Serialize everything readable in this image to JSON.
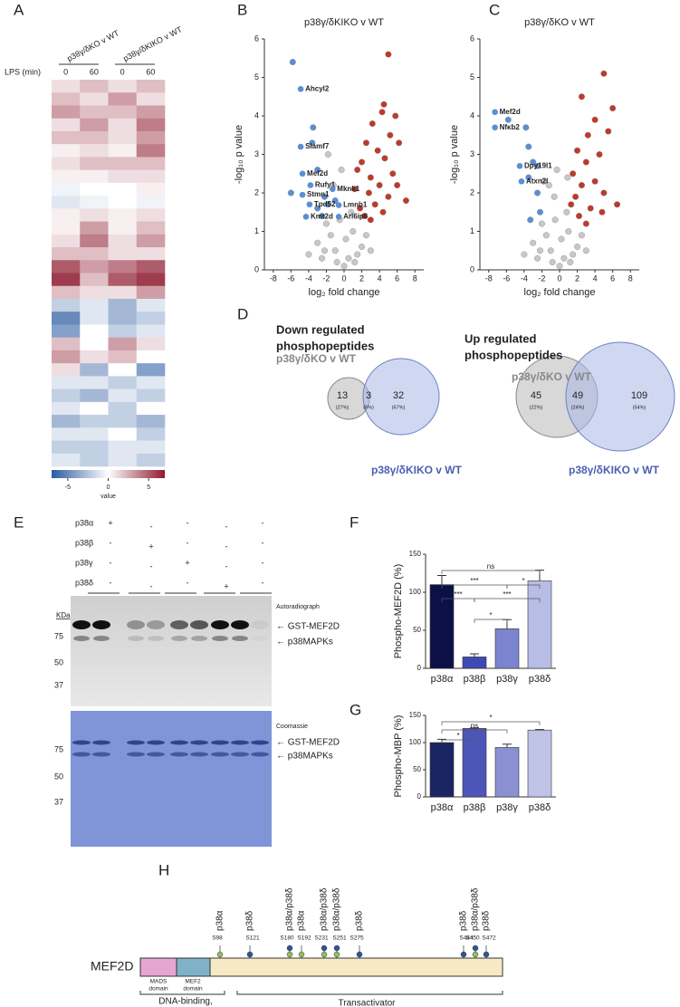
{
  "panel_labels": [
    "A",
    "B",
    "C",
    "D",
    "E",
    "F",
    "G",
    "H"
  ],
  "heatmap": {
    "column_groups": [
      "p38γ/δKO v WT",
      "p38γ/δKIKO v WT"
    ],
    "row_label": "LPS (min)",
    "time_points": [
      "0",
      "60",
      "0",
      "60"
    ],
    "lim": [
      -7,
      7
    ],
    "ticks": [
      -5,
      0,
      5
    ],
    "colorbar_label": "value",
    "rows": [
      [
        1,
        2,
        1,
        2
      ],
      [
        2,
        1,
        3,
        1
      ],
      [
        3,
        2,
        2,
        3
      ],
      [
        1,
        3,
        1,
        4
      ],
      [
        2,
        2,
        1,
        3
      ],
      [
        0.5,
        1,
        0.5,
        4
      ],
      [
        1,
        2,
        2,
        2
      ],
      [
        0.5,
        0.5,
        1,
        1
      ],
      [
        -0.5,
        0,
        0,
        0.5
      ],
      [
        -1,
        -0.5,
        0,
        -0.5
      ],
      [
        0.5,
        1,
        0.5,
        1
      ],
      [
        0.5,
        3,
        0.5,
        2
      ],
      [
        1,
        4,
        1,
        3
      ],
      [
        2,
        2,
        1,
        1
      ],
      [
        5,
        3,
        4,
        5
      ],
      [
        6,
        2,
        5,
        6
      ],
      [
        2,
        1,
        1,
        3
      ],
      [
        -2,
        -1,
        -3,
        -1
      ],
      [
        -5,
        -1,
        -3,
        -2
      ],
      [
        -4,
        0,
        -2,
        -1
      ],
      [
        2,
        0,
        3,
        1
      ],
      [
        3,
        1,
        2,
        0
      ],
      [
        1,
        -3,
        0,
        -4
      ],
      [
        -1,
        -1,
        -2,
        -1
      ],
      [
        -2,
        -3,
        -1,
        -2
      ],
      [
        -1,
        0,
        -2,
        0
      ],
      [
        -3,
        -2,
        -2,
        -3
      ],
      [
        -1,
        -1,
        0,
        -2
      ],
      [
        -2,
        -2,
        -1,
        -1
      ],
      [
        -1,
        -2,
        -1,
        -2
      ]
    ]
  },
  "chart_data": [
    {
      "type": "scatter",
      "title": "p38γ/δKIKO v WT",
      "xlabel": "log₂ fold change",
      "ylabel": "-log₁₀ p value",
      "xlim": [
        -9,
        9
      ],
      "xticks": [
        -8,
        -6,
        -4,
        -2,
        0,
        2,
        4,
        6,
        8
      ],
      "ylim": [
        0,
        6
      ],
      "yticks": [
        0,
        1,
        2,
        3,
        4,
        5,
        6
      ],
      "series": [
        {
          "color": "#c8c8c8",
          "x": [
            -1,
            0.5,
            -2,
            1,
            -0.5,
            0.2,
            -3,
            2,
            -1.5,
            1.5,
            -2.5,
            0,
            3,
            -4,
            -1.2,
            -0.3,
            -1.8,
            0.8,
            -2.2,
            1.2,
            2.5,
            -0.8
          ],
          "y": [
            0.5,
            0.3,
            1.2,
            1,
            1.3,
            0.8,
            0.7,
            0.6,
            0.9,
            0.4,
            0.3,
            0.1,
            0.5,
            0.4,
            2.2,
            2.6,
            3,
            1.5,
            0.5,
            0.2,
            0.9,
            0.2
          ]
        },
        {
          "color": "#5b8ed6",
          "x": [
            -5.8,
            -3.5,
            -3,
            -6,
            -2.2,
            -1.8,
            -3,
            -2.5,
            -1,
            -3.6
          ],
          "y": [
            5.4,
            3.7,
            2.6,
            2,
            1.9,
            1.7,
            1.6,
            1.4,
            1.8,
            3.3
          ]
        },
        {
          "color": "#c0392b",
          "x": [
            5,
            4.3,
            3.2,
            4.5,
            5.2,
            2.5,
            3.8,
            4.6,
            2,
            5.5,
            3,
            1.5,
            4,
            6,
            7,
            2.8,
            1.2,
            5,
            3.5,
            1.8,
            4.4,
            2.3,
            6.2,
            5.8,
            3
          ],
          "y": [
            5.6,
            4.1,
            3.8,
            4.3,
            3.5,
            3.3,
            3.1,
            2.9,
            2.8,
            2.5,
            2.4,
            2.6,
            2.2,
            2.2,
            1.8,
            2,
            2.1,
            1.9,
            1.7,
            1.6,
            1.5,
            1.4,
            3.3,
            4,
            1.3
          ]
        }
      ],
      "label_color": "#5b8ed6",
      "labeled_points": [
        {
          "label": "Ahcyl2",
          "x": -4.9,
          "y": 4.7
        },
        {
          "label": "Slamf7",
          "x": -4.9,
          "y": 3.2
        },
        {
          "label": "Mef2d",
          "x": -4.7,
          "y": 2.5
        },
        {
          "label": "Rufy1",
          "x": -3.8,
          "y": 2.2
        },
        {
          "label": "Mknk1",
          "x": -1.3,
          "y": 2.1
        },
        {
          "label": "Stmn1",
          "x": -4.7,
          "y": 1.95
        },
        {
          "label": "Tpd52",
          "x": -3.9,
          "y": 1.7
        },
        {
          "label": "Lmnb1",
          "x": -0.6,
          "y": 1.68
        },
        {
          "label": "Kmt2d",
          "x": -4.3,
          "y": 1.38
        },
        {
          "label": "Arl6ip6",
          "x": -0.6,
          "y": 1.38
        }
      ]
    },
    {
      "type": "scatter",
      "title": "p38γ/δKO v WT",
      "xlabel": "log₂ fold change",
      "ylabel": "-log₁₀ p value",
      "xlim": [
        -9,
        9
      ],
      "xticks": [
        -8,
        -6,
        -4,
        -2,
        0,
        2,
        4,
        6,
        8
      ],
      "ylim": [
        0,
        6
      ],
      "yticks": [
        0,
        1,
        2,
        3,
        4,
        5,
        6
      ],
      "series": [
        {
          "color": "#c8c8c8",
          "x": [
            -1,
            0.5,
            -2,
            1,
            -0.5,
            0.2,
            -3,
            2,
            -1.5,
            1.5,
            -2.5,
            0,
            3,
            -4,
            -1.2,
            -0.3,
            -1.8,
            0.8,
            -2.2,
            1.2,
            2.5,
            -0.8,
            -0.6,
            0.9
          ],
          "y": [
            0.5,
            0.3,
            1.2,
            1,
            1.3,
            0.8,
            0.7,
            0.6,
            0.9,
            0.4,
            0.3,
            0.1,
            0.5,
            0.4,
            2.2,
            2.6,
            2.3,
            1.5,
            0.5,
            0.2,
            0.9,
            0.2,
            1.9,
            2.4
          ]
        },
        {
          "color": "#5b8ed6",
          "x": [
            -5.8,
            -3.8,
            -3.5,
            -3,
            -2.5,
            -3.5,
            -2.2,
            -3.3,
            -2.5
          ],
          "y": [
            3.9,
            3.7,
            3.2,
            2.8,
            2.7,
            2.4,
            1.5,
            1.3,
            2
          ]
        },
        {
          "color": "#c0392b",
          "x": [
            5,
            6,
            2.5,
            4,
            3.2,
            5.5,
            2,
            4.5,
            3,
            1.5,
            6.5,
            2.5,
            4,
            1.8,
            5,
            3.5,
            2.2,
            4.8,
            1.3,
            3
          ],
          "y": [
            5.1,
            4.2,
            4.5,
            3.9,
            3.5,
            3.6,
            3.1,
            3,
            2.8,
            2.5,
            1.7,
            2.2,
            2.3,
            1.9,
            2,
            1.6,
            1.4,
            1.5,
            1.7,
            1.2
          ]
        }
      ],
      "label_color": "#5b8ed6",
      "labeled_points": [
        {
          "label": "Mef2d",
          "x": -7.3,
          "y": 4.1
        },
        {
          "label": "Nfκb2",
          "x": -7.3,
          "y": 3.7
        },
        {
          "label": "Dpy19l1",
          "x": -4.5,
          "y": 2.7
        },
        {
          "label": "Atxn2l",
          "x": -4.3,
          "y": 2.3
        }
      ]
    },
    {
      "type": "bar",
      "ylabel": "Phospho-MEF2D (%)",
      "categories": [
        "p38α",
        "p38β",
        "p38γ",
        "p38δ"
      ],
      "values": [
        110,
        15,
        52,
        115
      ],
      "errors": [
        12,
        4,
        12,
        14
      ],
      "colors": [
        "#0b1147",
        "#3e4ab3",
        "#7c84cf",
        "#b7bde4"
      ],
      "ylim": [
        0,
        150
      ],
      "yticks": [
        0,
        50,
        100,
        150
      ],
      "significance": [
        "ns",
        "***",
        "*",
        "***",
        "***",
        "*"
      ]
    },
    {
      "type": "bar",
      "ylabel": "Phospho-MBP (%)",
      "categories": [
        "p38α",
        "p38β",
        "p38γ",
        "p38δ"
      ],
      "values": [
        100,
        126,
        91,
        123
      ],
      "errors": [
        6,
        1,
        6,
        1
      ],
      "colors": [
        "#1a2561",
        "#4c56b8",
        "#8a90d2",
        "#bfc3e6"
      ],
      "ylim": [
        0,
        150
      ],
      "yticks": [
        0,
        50,
        100,
        150
      ],
      "significance": [
        "*",
        "ns",
        "*"
      ]
    }
  ],
  "venn": {
    "down": {
      "title": [
        "Down regulated",
        "phosphopeptides"
      ],
      "sets": [
        "p38γ/δKO v WT",
        "p38γ/δKIKO v WT"
      ],
      "counts": [
        "13",
        "3",
        "32"
      ],
      "percents": [
        "(27%)",
        "(6%)",
        "(67%)"
      ]
    },
    "up": {
      "title": [
        "Up regulated",
        "phosphopeptides"
      ],
      "sets": [
        "p38γ/δKO v WT",
        "p38γ/δKIKO v WT"
      ],
      "counts": [
        "45",
        "49",
        "109"
      ],
      "percents": [
        "(22%)",
        "(24%)",
        "(54%)"
      ]
    }
  },
  "blot": {
    "rows": [
      "p38α",
      "p38β",
      "p38γ",
      "p38δ"
    ],
    "treatments": [
      [
        "+",
        "-",
        "-",
        "-",
        "-"
      ],
      [
        "-",
        "+",
        "-",
        "-",
        "-"
      ],
      [
        "-",
        "-",
        "+",
        "-",
        "-"
      ],
      [
        "-",
        "-",
        "-",
        "+",
        "-"
      ]
    ],
    "autoradiograph": {
      "title": "Autoradiograph",
      "unit": "KDa",
      "markers": [
        "75",
        "50",
        "37"
      ],
      "bands": [
        "← GST-MEF2D",
        "← p38MAPKs"
      ]
    },
    "coomassie": {
      "title": "Coomassie",
      "markers": [
        "75",
        "50",
        "37"
      ],
      "bands": [
        "← GST-MEF2D",
        "← p38MAPKs"
      ]
    }
  },
  "protein": {
    "name": "MEF2D",
    "domains": [
      [
        "MADS",
        "domain"
      ],
      [
        "MEF2",
        "domain"
      ]
    ],
    "regions": [
      [
        "DNA-binding,",
        "dimerization"
      ],
      [
        "Transactivator"
      ]
    ],
    "sites": [
      {
        "site": "S98",
        "kinase": "p38α",
        "colors": [
          "#8fc15a"
        ]
      },
      {
        "site": "S121",
        "kinase": "p38δ",
        "colors": [
          "#2f5597"
        ]
      },
      {
        "site": "S180",
        "kinase": "p38α/p38δ",
        "colors": [
          "#8fc15a",
          "#2f5597"
        ]
      },
      {
        "site": "S192",
        "kinase": "p38α",
        "colors": [
          "#8fc15a"
        ]
      },
      {
        "site": "S231",
        "kinase": "p38α/p38δ",
        "colors": [
          "#8fc15a",
          "#2f5597"
        ]
      },
      {
        "site": "S251",
        "kinase": "p38α/p38δ",
        "colors": [
          "#8fc15a",
          "#2f5597"
        ]
      },
      {
        "site": "S275",
        "kinase": "p38δ",
        "colors": [
          "#2f5597"
        ]
      },
      {
        "site": "S444",
        "kinase": "p38δ",
        "colors": [
          "#2f5597"
        ]
      },
      {
        "site": "S450",
        "kinase": "p38α/p38δ",
        "colors": [
          "#8fc15a",
          "#2f5597"
        ]
      },
      {
        "site": "S472",
        "kinase": "p38δ",
        "colors": [
          "#2f5597"
        ]
      }
    ]
  }
}
